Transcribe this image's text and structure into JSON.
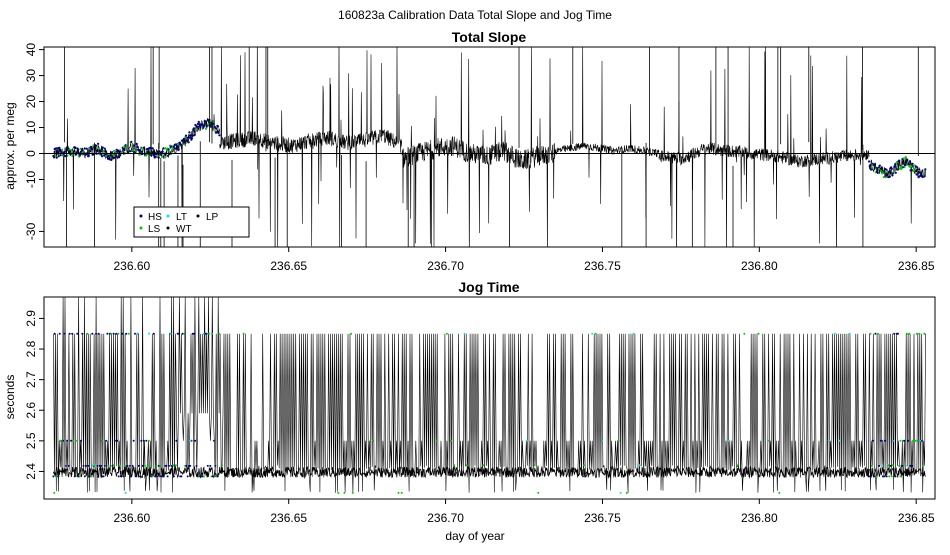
{
  "figure": {
    "title": "160823a   Calibration Data Total Slope and Jog Time"
  },
  "colors": {
    "HS": "#000080",
    "LS": "#00cc00",
    "LT": "#00e5ee",
    "WT": "#000000",
    "LP": "#000000",
    "trace": "#000000"
  },
  "chart_data": [
    {
      "type": "line",
      "title": "Total Slope",
      "xlabel": "",
      "ylabel": "approx. per meg",
      "xlim": [
        236.572,
        236.856
      ],
      "ylim": [
        -36,
        41
      ],
      "xticks": [
        "236.60",
        "236.65",
        "236.70",
        "236.75",
        "236.80",
        "236.85"
      ],
      "yticks": [
        "-30",
        "-10",
        "0",
        "10",
        "20",
        "30",
        "40"
      ],
      "reference_line_y": 0,
      "legend": {
        "position": "bottom-left",
        "entries": [
          "HS",
          "LT",
          "LP",
          "LS",
          "WT"
        ]
      },
      "segments": [
        {
          "x0": 236.575,
          "x1": 236.628,
          "level": [
            0,
            1,
            0.5,
            0,
            2,
            -1,
            0,
            3,
            1,
            0,
            0,
            2,
            5,
            10,
            12,
            8
          ],
          "noise": 2,
          "spikes": 0.1,
          "series": "HS"
        },
        {
          "x0": 236.628,
          "x1": 236.686,
          "level": [
            4,
            5,
            6,
            4,
            3,
            5,
            6,
            4,
            5,
            7,
            3
          ],
          "noise": 3,
          "spikes": 0.55,
          "series": "WT"
        },
        {
          "x0": 236.686,
          "x1": 236.735,
          "level": [
            -2,
            0,
            2,
            3,
            0,
            -1,
            1,
            -3,
            -1,
            0
          ],
          "noise": 4,
          "spikes": 0.5,
          "series": "WT"
        },
        {
          "x0": 236.735,
          "x1": 236.768,
          "level": [
            1,
            2,
            3,
            2,
            1,
            2,
            1,
            0
          ],
          "noise": 1.5,
          "spikes": 0.15,
          "series": "WT"
        },
        {
          "x0": 236.768,
          "x1": 236.835,
          "level": [
            -1,
            -2,
            2,
            1,
            0,
            -1,
            -3,
            -2,
            -1,
            0
          ],
          "noise": 2.5,
          "spikes": 0.3,
          "series": "WT"
        },
        {
          "x0": 236.835,
          "x1": 236.853,
          "level": [
            -4,
            -6,
            -8,
            -5,
            -3,
            -7,
            -8
          ],
          "noise": 2,
          "spikes": 0.1,
          "series": "HS"
        }
      ]
    },
    {
      "type": "line",
      "title": "Jog Time",
      "xlabel": "day of year",
      "ylabel": "seconds",
      "xlim": [
        236.572,
        236.856
      ],
      "ylim": [
        2.31,
        2.97
      ],
      "xticks": [
        "236.60",
        "236.65",
        "236.70",
        "236.75",
        "236.80",
        "236.85"
      ],
      "yticks": [
        "2.4",
        "2.5",
        "2.6",
        "2.7",
        "2.8",
        "2.9"
      ],
      "x_range": [
        236.575,
        236.853
      ],
      "levels": {
        "low": [
          2.33,
          2.34
        ],
        "mid": [
          2.38,
          2.42
        ],
        "elevated": 2.5,
        "high": 2.85,
        "plateau": 2.59
      },
      "plateau_range": [
        236.614,
        236.63
      ]
    }
  ]
}
